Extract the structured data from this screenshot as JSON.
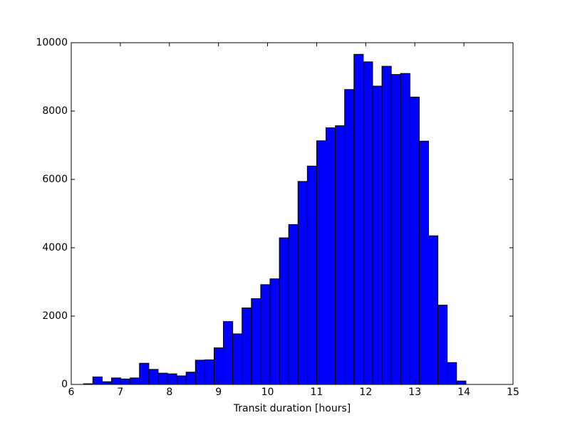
{
  "chart_data": {
    "type": "histogram",
    "x_label": "Transit duration [hours]",
    "bins": [
      6.25,
      6.44,
      6.63,
      6.82,
      7.01,
      7.2,
      7.39,
      7.58,
      7.77,
      7.96,
      8.15,
      8.34,
      8.53,
      8.72,
      8.91,
      9.1,
      9.29,
      9.48,
      9.67,
      9.86,
      10.05,
      10.24,
      10.43,
      10.62,
      10.81,
      11.0,
      11.19,
      11.38,
      11.57,
      11.76,
      11.95,
      12.14,
      12.33,
      12.52,
      12.71,
      12.9,
      13.09,
      13.28,
      13.47,
      13.66,
      13.85,
      14.04
    ],
    "values": [
      20,
      220,
      80,
      190,
      160,
      190,
      620,
      440,
      330,
      310,
      250,
      360,
      710,
      720,
      1070,
      1840,
      1480,
      2240,
      2510,
      2920,
      3090,
      4290,
      4680,
      5940,
      6390,
      7130,
      7510,
      7570,
      8630,
      9660,
      9440,
      8730,
      9310,
      9070,
      9100,
      8410,
      7120,
      4350,
      2320,
      640,
      100
    ],
    "color": "#0000ff",
    "xlim": [
      6,
      15
    ],
    "xticks": [
      6,
      7,
      8,
      9,
      10,
      11,
      12,
      13,
      14,
      15
    ],
    "ylim": [
      0,
      10000
    ],
    "yticks": [
      0,
      2000,
      4000,
      6000,
      8000,
      10000
    ]
  }
}
